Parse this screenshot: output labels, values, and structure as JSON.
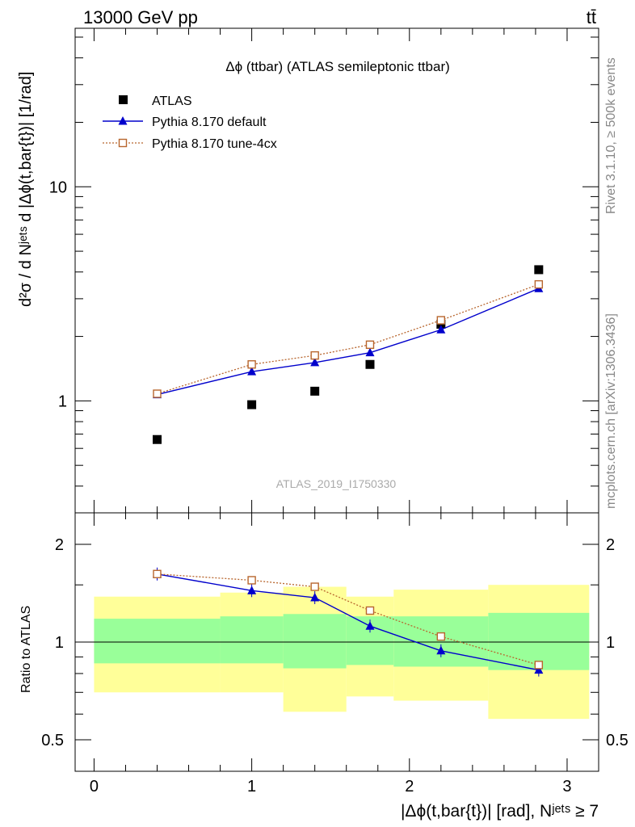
{
  "header": {
    "left": "13000 GeV pp",
    "right": "tt̄"
  },
  "side_labels": {
    "rivet": "Rivet 3.1.10, ≥ 500k events",
    "mcplots": "mcplots.cern.ch [arXiv:1306.3436]"
  },
  "colors": {
    "atlas": "#000000",
    "default": "#0000cc",
    "tune": "#b8662e",
    "band_inner": "#99ff99",
    "band_outer": "#ffff99"
  },
  "chart_data": [
    {
      "type": "scatter",
      "title": "Δϕ (ttbar) (ATLAS semileptonic ttbar)",
      "ylabel": "d²σ / d Nʲᵉᵗˢ d |Δϕ(t,bar{t})| [1/rad]",
      "watermark": "ATLAS_2019_I1750330",
      "yscale": "log",
      "xlim": [
        -0.12,
        3.2
      ],
      "ylim": [
        0.3,
        55
      ],
      "yticks": [
        1,
        10
      ],
      "ytick_labels": [
        "1",
        "10"
      ],
      "legend": [
        "ATLAS",
        "Pythia 8.170 default",
        "Pythia 8.170 tune-4cx"
      ],
      "legend_position": "top-left",
      "series": [
        {
          "name": "ATLAS",
          "marker": "square",
          "x": [
            0.4,
            1.0,
            1.4,
            1.75,
            2.2,
            2.82
          ],
          "y": [
            0.66,
            0.96,
            1.11,
            1.48,
            2.28,
            4.1
          ]
        },
        {
          "name": "Pythia 8.170 default",
          "marker": "triangle",
          "x": [
            0.4,
            1.0,
            1.4,
            1.75,
            2.2,
            2.82
          ],
          "y": [
            1.07,
            1.37,
            1.51,
            1.68,
            2.15,
            3.35
          ]
        },
        {
          "name": "Pythia 8.170 tune-4cx",
          "marker": "open-square",
          "x": [
            0.4,
            1.0,
            1.4,
            1.75,
            2.2,
            2.82
          ],
          "y": [
            1.08,
            1.48,
            1.63,
            1.83,
            2.38,
            3.5
          ]
        }
      ]
    },
    {
      "type": "scatter",
      "ylabel": "Ratio to ATLAS",
      "xlabel": "|Δϕ(t,bar{t})| [rad], Nʲᵉᵗˢ ≥ 7",
      "yscale": "log",
      "xlim": [
        -0.12,
        3.2
      ],
      "ylim": [
        0.4,
        2.5
      ],
      "xticks": [
        0,
        1,
        2,
        3
      ],
      "xtick_labels": [
        "0",
        "1",
        "2",
        "3"
      ],
      "yticks": [
        0.5,
        1,
        2
      ],
      "ytick_labels": [
        "0.5",
        "1",
        "2"
      ],
      "bands": [
        {
          "xmin": 0.0,
          "xmax": 0.8,
          "inner": [
            0.86,
            1.18
          ],
          "outer": [
            0.7,
            1.38
          ]
        },
        {
          "xmin": 0.8,
          "xmax": 1.2,
          "inner": [
            0.86,
            1.2
          ],
          "outer": [
            0.7,
            1.42
          ]
        },
        {
          "xmin": 1.2,
          "xmax": 1.6,
          "inner": [
            0.83,
            1.22
          ],
          "outer": [
            0.61,
            1.48
          ]
        },
        {
          "xmin": 1.6,
          "xmax": 1.9,
          "inner": [
            0.85,
            1.2
          ],
          "outer": [
            0.68,
            1.38
          ]
        },
        {
          "xmin": 1.9,
          "xmax": 2.5,
          "inner": [
            0.84,
            1.2
          ],
          "outer": [
            0.66,
            1.45
          ]
        },
        {
          "xmin": 2.5,
          "xmax": 3.14,
          "inner": [
            0.82,
            1.23
          ],
          "outer": [
            0.58,
            1.5
          ]
        }
      ],
      "series": [
        {
          "name": "Pythia 8.170 default",
          "x": [
            0.4,
            1.0,
            1.4,
            1.75,
            2.2,
            2.82
          ],
          "y": [
            1.62,
            1.44,
            1.37,
            1.12,
            0.94,
            0.82
          ]
        },
        {
          "name": "Pythia 8.170 tune-4cx",
          "x": [
            0.4,
            1.0,
            1.4,
            1.75,
            2.2,
            2.82
          ],
          "y": [
            1.62,
            1.55,
            1.48,
            1.25,
            1.04,
            0.85
          ]
        }
      ]
    }
  ]
}
